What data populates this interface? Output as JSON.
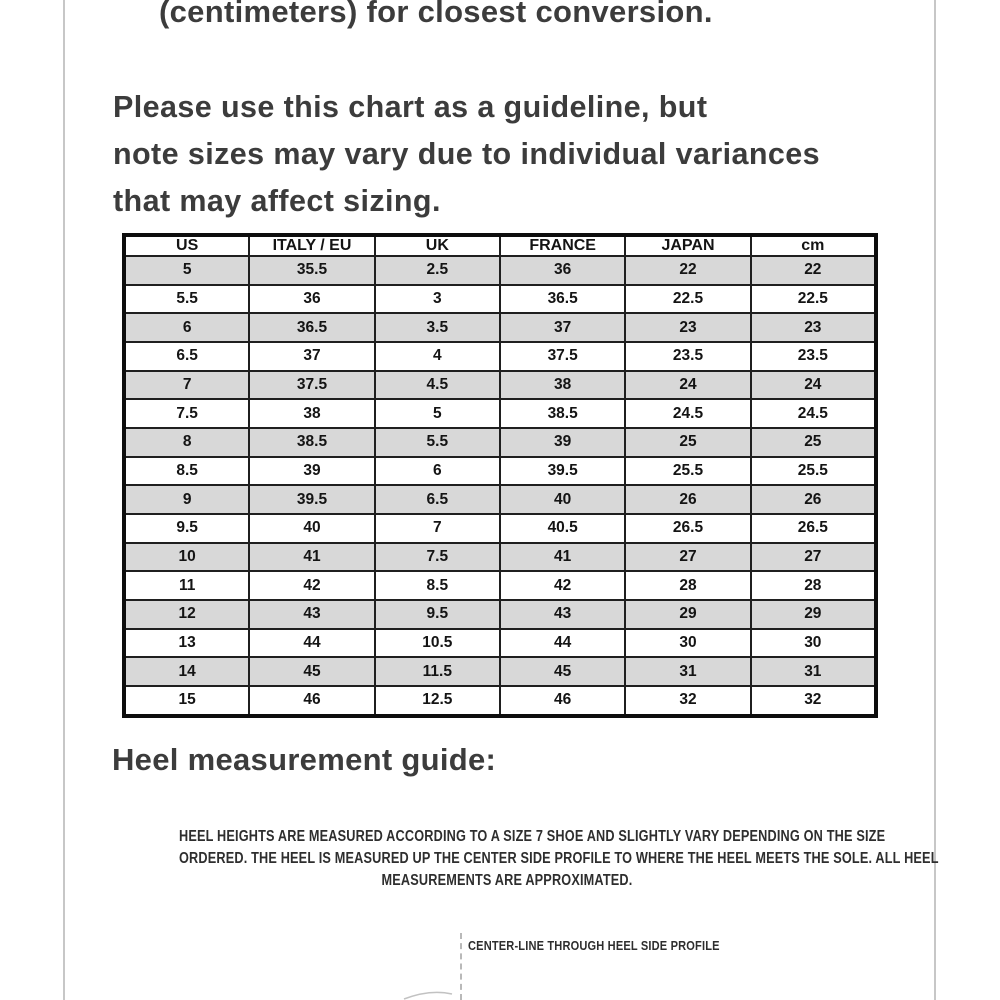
{
  "intro": {
    "tail_line": "(centimeters) for closest conversion."
  },
  "guideline": {
    "line1": "Please use this chart as a guideline, but",
    "line2": "note sizes may vary due to individual variances",
    "line3": "that may affect sizing."
  },
  "size_chart": {
    "headers": [
      "US",
      "ITALY / EU",
      "UK",
      "FRANCE",
      "JAPAN",
      "cm"
    ],
    "rows": [
      [
        "5",
        "35.5",
        "2.5",
        "36",
        "22",
        "22"
      ],
      [
        "5.5",
        "36",
        "3",
        "36.5",
        "22.5",
        "22.5"
      ],
      [
        "6",
        "36.5",
        "3.5",
        "37",
        "23",
        "23"
      ],
      [
        "6.5",
        "37",
        "4",
        "37.5",
        "23.5",
        "23.5"
      ],
      [
        "7",
        "37.5",
        "4.5",
        "38",
        "24",
        "24"
      ],
      [
        "7.5",
        "38",
        "5",
        "38.5",
        "24.5",
        "24.5"
      ],
      [
        "8",
        "38.5",
        "5.5",
        "39",
        "25",
        "25"
      ],
      [
        "8.5",
        "39",
        "6",
        "39.5",
        "25.5",
        "25.5"
      ],
      [
        "9",
        "39.5",
        "6.5",
        "40",
        "26",
        "26"
      ],
      [
        "9.5",
        "40",
        "7",
        "40.5",
        "26.5",
        "26.5"
      ],
      [
        "10",
        "41",
        "7.5",
        "41",
        "27",
        "27"
      ],
      [
        "11",
        "42",
        "8.5",
        "42",
        "28",
        "28"
      ],
      [
        "12",
        "43",
        "9.5",
        "43",
        "29",
        "29"
      ],
      [
        "13",
        "44",
        "10.5",
        "44",
        "30",
        "30"
      ],
      [
        "14",
        "45",
        "11.5",
        "45",
        "31",
        "31"
      ],
      [
        "15",
        "46",
        "12.5",
        "46",
        "32",
        "32"
      ]
    ]
  },
  "heel_guide": {
    "heading": "Heel measurement guide:",
    "note_line1": "HEEL HEIGHTS ARE MEASURED ACCORDING TO A SIZE 7 SHOE AND SLIGHTLY VARY DEPENDING ON THE SIZE",
    "note_line2": "ORDERED. THE HEEL IS MEASURED UP THE CENTER SIDE PROFILE TO WHERE THE HEEL MEETS THE SOLE. ALL HEEL",
    "note_line3": "MEASUREMENTS ARE APPROXIMATED.",
    "diagram_label": "CENTER-LINE THROUGH HEEL SIDE PROFILE"
  },
  "colors": {
    "body_text": "#3c3c3c",
    "table_text": "#141414",
    "table_border": "#0d0d0d",
    "row_shade": "#d8d8d8",
    "page_edge": "#c7c7c7",
    "background": "#ffffff"
  }
}
